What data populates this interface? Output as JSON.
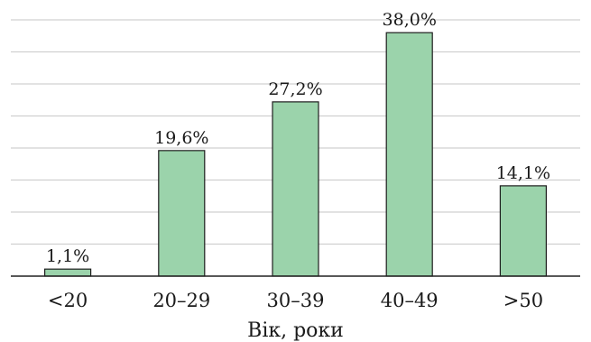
{
  "chart_data": {
    "type": "bar",
    "categories": [
      "<20",
      "20–29",
      "30–39",
      "40–49",
      ">50"
    ],
    "values": [
      1.1,
      19.6,
      27.2,
      38.0,
      14.1
    ],
    "value_labels": [
      "1,1%",
      "19,6%",
      "27,2%",
      "38,0%",
      "14,1%"
    ],
    "xlabel": "Вік, роки",
    "ylabel": "",
    "ylim": [
      0,
      40
    ],
    "grid": true,
    "grid_step": 5,
    "colors": {
      "bar_fill": "#9bd3ab",
      "bar_stroke": "#1e1e1e",
      "grid": "#d0d0d0"
    }
  }
}
